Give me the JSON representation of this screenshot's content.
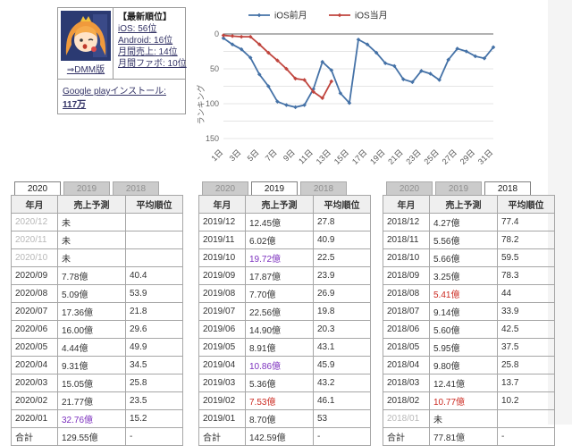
{
  "info_box": {
    "title": "【最新順位】",
    "dmm_link": "⇒DMM版",
    "rank_links": [
      "iOS: 56位",
      "Android: 16位",
      "月間売上: 14位",
      "月間ファボ: 10位"
    ],
    "installs_prefix": "Google playインストール: ",
    "installs_value": "117万"
  },
  "chart_data": {
    "type": "line",
    "title": "",
    "xlabel": "",
    "ylabel": "ランキング",
    "ylim": [
      0,
      150
    ],
    "y_inverted": true,
    "y_ticks": [
      0,
      50,
      100,
      150
    ],
    "grid_interval": 25,
    "x_range": [
      1,
      31
    ],
    "x_tick_labels": [
      "1日",
      "3日",
      "5日",
      "7日",
      "9日",
      "11日",
      "13日",
      "15日",
      "17日",
      "19日",
      "21日",
      "23日",
      "25日",
      "27日",
      "29日",
      "31日"
    ],
    "legend_position": "top",
    "series": [
      {
        "name": "iOS前月",
        "color": "#4572a7",
        "x": [
          1,
          2,
          3,
          4,
          5,
          6,
          7,
          8,
          9,
          10,
          11,
          12,
          13,
          14,
          15,
          16,
          17,
          18,
          19,
          20,
          21,
          22,
          23,
          24,
          25,
          26,
          27,
          28,
          29,
          30,
          31
        ],
        "values": [
          6,
          15,
          22,
          34,
          58,
          75,
          97,
          102,
          105,
          102,
          79,
          40,
          52,
          85,
          99,
          8,
          15,
          27,
          42,
          46,
          65,
          69,
          53,
          57,
          66,
          37,
          21,
          25,
          32,
          35,
          19
        ]
      },
      {
        "name": "iOS当月",
        "color": "#c0453e",
        "x": [
          1,
          2,
          3,
          4,
          5,
          6,
          7,
          8,
          9,
          10,
          11,
          12,
          13
        ],
        "values": [
          2,
          3,
          4,
          4,
          15,
          27,
          38,
          50,
          64,
          66,
          83,
          92,
          68
        ]
      }
    ]
  },
  "tables": [
    {
      "tabs": [
        "2020",
        "2019",
        "2018"
      ],
      "active_tab": 0,
      "headers": [
        "年月",
        "売上予測",
        "平均順位"
      ],
      "rows": [
        {
          "m": "2020/12",
          "s": "未",
          "r": "",
          "month_muted": true
        },
        {
          "m": "2020/11",
          "s": "未",
          "r": "",
          "month_muted": true
        },
        {
          "m": "2020/10",
          "s": "未",
          "r": "",
          "month_muted": true
        },
        {
          "m": "2020/09",
          "s": "7.78億",
          "r": "40.4"
        },
        {
          "m": "2020/08",
          "s": "5.09億",
          "r": "53.9"
        },
        {
          "m": "2020/07",
          "s": "17.36億",
          "r": "21.8"
        },
        {
          "m": "2020/06",
          "s": "16.00億",
          "r": "29.6"
        },
        {
          "m": "2020/05",
          "s": "4.44億",
          "r": "49.9"
        },
        {
          "m": "2020/04",
          "s": "9.31億",
          "r": "34.5"
        },
        {
          "m": "2020/03",
          "s": "15.05億",
          "r": "25.8"
        },
        {
          "m": "2020/02",
          "s": "21.77億",
          "r": "23.5"
        },
        {
          "m": "2020/01",
          "s": "32.76億",
          "r": "15.2",
          "sales_color": "purple"
        }
      ],
      "total": {
        "label": "合計",
        "s": "129.55億",
        "r": "-"
      }
    },
    {
      "tabs": [
        "2020",
        "2019",
        "2018"
      ],
      "active_tab": 1,
      "headers": [
        "年月",
        "売上予測",
        "平均順位"
      ],
      "rows": [
        {
          "m": "2019/12",
          "s": "12.45億",
          "r": "27.8"
        },
        {
          "m": "2019/11",
          "s": "6.02億",
          "r": "40.9"
        },
        {
          "m": "2019/10",
          "s": "19.72億",
          "r": "22.5",
          "sales_color": "purple"
        },
        {
          "m": "2019/09",
          "s": "17.87億",
          "r": "23.9"
        },
        {
          "m": "2019/08",
          "s": "7.70億",
          "r": "26.9"
        },
        {
          "m": "2019/07",
          "s": "22.56億",
          "r": "19.8"
        },
        {
          "m": "2019/06",
          "s": "14.90億",
          "r": "20.3"
        },
        {
          "m": "2019/05",
          "s": "8.91億",
          "r": "43.1"
        },
        {
          "m": "2019/04",
          "s": "10.86億",
          "r": "45.9",
          "sales_color": "purple"
        },
        {
          "m": "2019/03",
          "s": "5.36億",
          "r": "43.2"
        },
        {
          "m": "2019/02",
          "s": "7.53億",
          "r": "46.1",
          "sales_color": "red"
        },
        {
          "m": "2019/01",
          "s": "8.70億",
          "r": "53"
        }
      ],
      "total": {
        "label": "合計",
        "s": "142.59億",
        "r": "-"
      }
    },
    {
      "tabs": [
        "2020",
        "2019",
        "2018"
      ],
      "active_tab": 2,
      "headers": [
        "年月",
        "売上予測",
        "平均順位"
      ],
      "rows": [
        {
          "m": "2018/12",
          "s": "4.27億",
          "r": "77.4"
        },
        {
          "m": "2018/11",
          "s": "5.56億",
          "r": "78.2"
        },
        {
          "m": "2018/10",
          "s": "5.66億",
          "r": "59.5"
        },
        {
          "m": "2018/09",
          "s": "3.25億",
          "r": "78.3"
        },
        {
          "m": "2018/08",
          "s": "5.41億",
          "r": "44",
          "sales_color": "red"
        },
        {
          "m": "2018/07",
          "s": "9.14億",
          "r": "33.9"
        },
        {
          "m": "2018/06",
          "s": "5.60億",
          "r": "42.5"
        },
        {
          "m": "2018/05",
          "s": "5.95億",
          "r": "37.5"
        },
        {
          "m": "2018/04",
          "s": "9.80億",
          "r": "25.8"
        },
        {
          "m": "2018/03",
          "s": "12.41億",
          "r": "13.7"
        },
        {
          "m": "2018/02",
          "s": "10.77億",
          "r": "10.2",
          "sales_color": "red"
        },
        {
          "m": "2018/01",
          "s": "未",
          "r": "",
          "month_muted": true
        }
      ],
      "total": {
        "label": "合計",
        "s": "77.81億",
        "r": "-"
      }
    }
  ]
}
